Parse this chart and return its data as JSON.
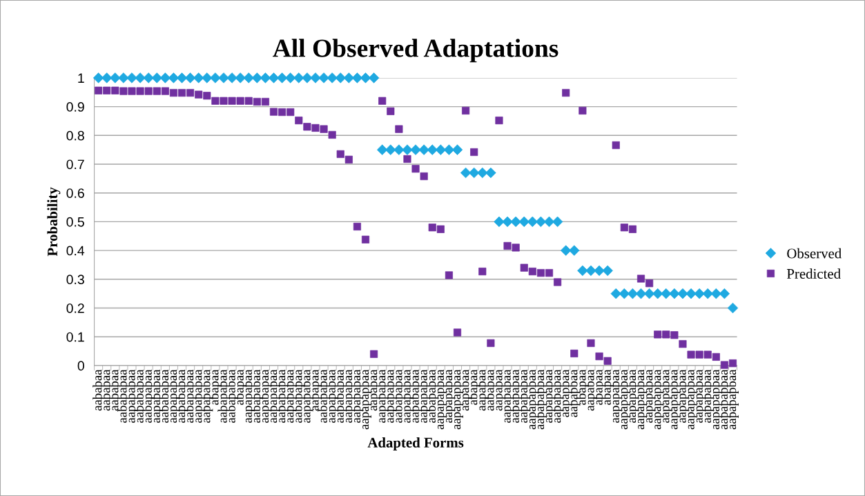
{
  "chart_data": {
    "type": "scatter",
    "title": "All Observed Adaptations",
    "xlabel": "Adapted Forms",
    "ylabel": "Probability",
    "categories": [
      "aababaa",
      "aababaa",
      "aababaa",
      "aabababaa",
      "aapababaa",
      "aabababaa",
      "aabapabaa",
      "aapababaa",
      "aabababaa",
      "aapapabaa",
      "aapababaa",
      "aabapabaa",
      "aapapabaa",
      "aapapabaa",
      "abapaa",
      "aabapabaa",
      "aabapabaa",
      "abapaa",
      "aapapabaa",
      "aabapabaa",
      "aapabapaa",
      "aapapapaa",
      "aapapapaa",
      "aapapapaa",
      "aabapapaa",
      "aapapabaa",
      "aapapaa",
      "aabapabaa",
      "aapapabaa",
      "aapababaa",
      "aapapabaa",
      "aapapabaa",
      "aapapapbaa",
      "aapabaa",
      "aapapabaa",
      "aapapabaa",
      "aabapabaa",
      "aapapabaa",
      "aapababaa",
      "aapapabaa",
      "aabapabaa",
      "aapapapbaa",
      "aapapabaa",
      "aapapapbaa",
      "aapabaa",
      "abapaa",
      "aapabaa",
      "aababaa",
      "aapabaa",
      "aapapabaa",
      "aapapabaa",
      "aapapabaa",
      "aapapapbaa",
      "aapapapbaa",
      "aapapabaa",
      "aapapabaa",
      "aapapbaa",
      "aapapbaa",
      "abapaa",
      "aapabaa",
      "abapaa",
      "abapaa",
      "aapapabaa",
      "aapapapbaa",
      "aapapabaa",
      "aapapapbaa",
      "aapapabaa",
      "aapapapbaa",
      "aapapabaa",
      "aapapapbaa",
      "aapapabaa",
      "aapapapbaa",
      "aapapabaa",
      "aapapabaa",
      "aapapapbaa",
      "aapapapbaa",
      "aapapapbaa"
    ],
    "series": [
      {
        "name": "Observed",
        "color": "#1fa9e1",
        "marker": "diamond",
        "values": [
          1,
          1,
          1,
          1,
          1,
          1,
          1,
          1,
          1,
          1,
          1,
          1,
          1,
          1,
          1,
          1,
          1,
          1,
          1,
          1,
          1,
          1,
          1,
          1,
          1,
          1,
          1,
          1,
          1,
          1,
          1,
          1,
          1,
          1,
          0.75,
          0.75,
          0.75,
          0.75,
          0.75,
          0.75,
          0.75,
          0.75,
          0.75,
          0.75,
          0.67,
          0.67,
          0.67,
          0.67,
          0.5,
          0.5,
          0.5,
          0.5,
          0.5,
          0.5,
          0.5,
          0.5,
          0.4,
          0.4,
          0.33,
          0.33,
          0.33,
          0.33,
          0.25,
          0.25,
          0.25,
          0.25,
          0.25,
          0.25,
          0.25,
          0.25,
          0.25,
          0.25,
          0.25,
          0.25,
          0.25,
          0.25,
          0.2
        ]
      },
      {
        "name": "Predicted",
        "color": "#7030a0",
        "marker": "square",
        "values": [
          0.956,
          0.956,
          0.956,
          0.954,
          0.954,
          0.954,
          0.954,
          0.954,
          0.954,
          0.948,
          0.948,
          0.948,
          0.942,
          0.938,
          0.92,
          0.92,
          0.92,
          0.92,
          0.92,
          0.917,
          0.917,
          0.882,
          0.881,
          0.881,
          0.852,
          0.83,
          0.826,
          0.822,
          0.802,
          0.735,
          0.716,
          0.483,
          0.438,
          0.04,
          0.92,
          0.884,
          0.822,
          0.718,
          0.684,
          0.658,
          0.48,
          0.474,
          0.314,
          0.115,
          0.886,
          0.742,
          0.327,
          0.078,
          0.852,
          0.416,
          0.41,
          0.34,
          0.327,
          0.322,
          0.322,
          0.29,
          0.948,
          0.042,
          0.886,
          0.078,
          0.032,
          0.016,
          0.766,
          0.48,
          0.474,
          0.302,
          0.286,
          0.108,
          0.108,
          0.106,
          0.075,
          0.038,
          0.038,
          0.038,
          0.03,
          0.002,
          0.008
        ]
      }
    ],
    "ylim": [
      0,
      1
    ],
    "yticks": [
      0,
      0.1,
      0.2,
      0.3,
      0.4,
      0.5,
      0.6,
      0.7,
      0.8,
      0.9,
      1
    ],
    "grid": "y",
    "legend": "right"
  }
}
